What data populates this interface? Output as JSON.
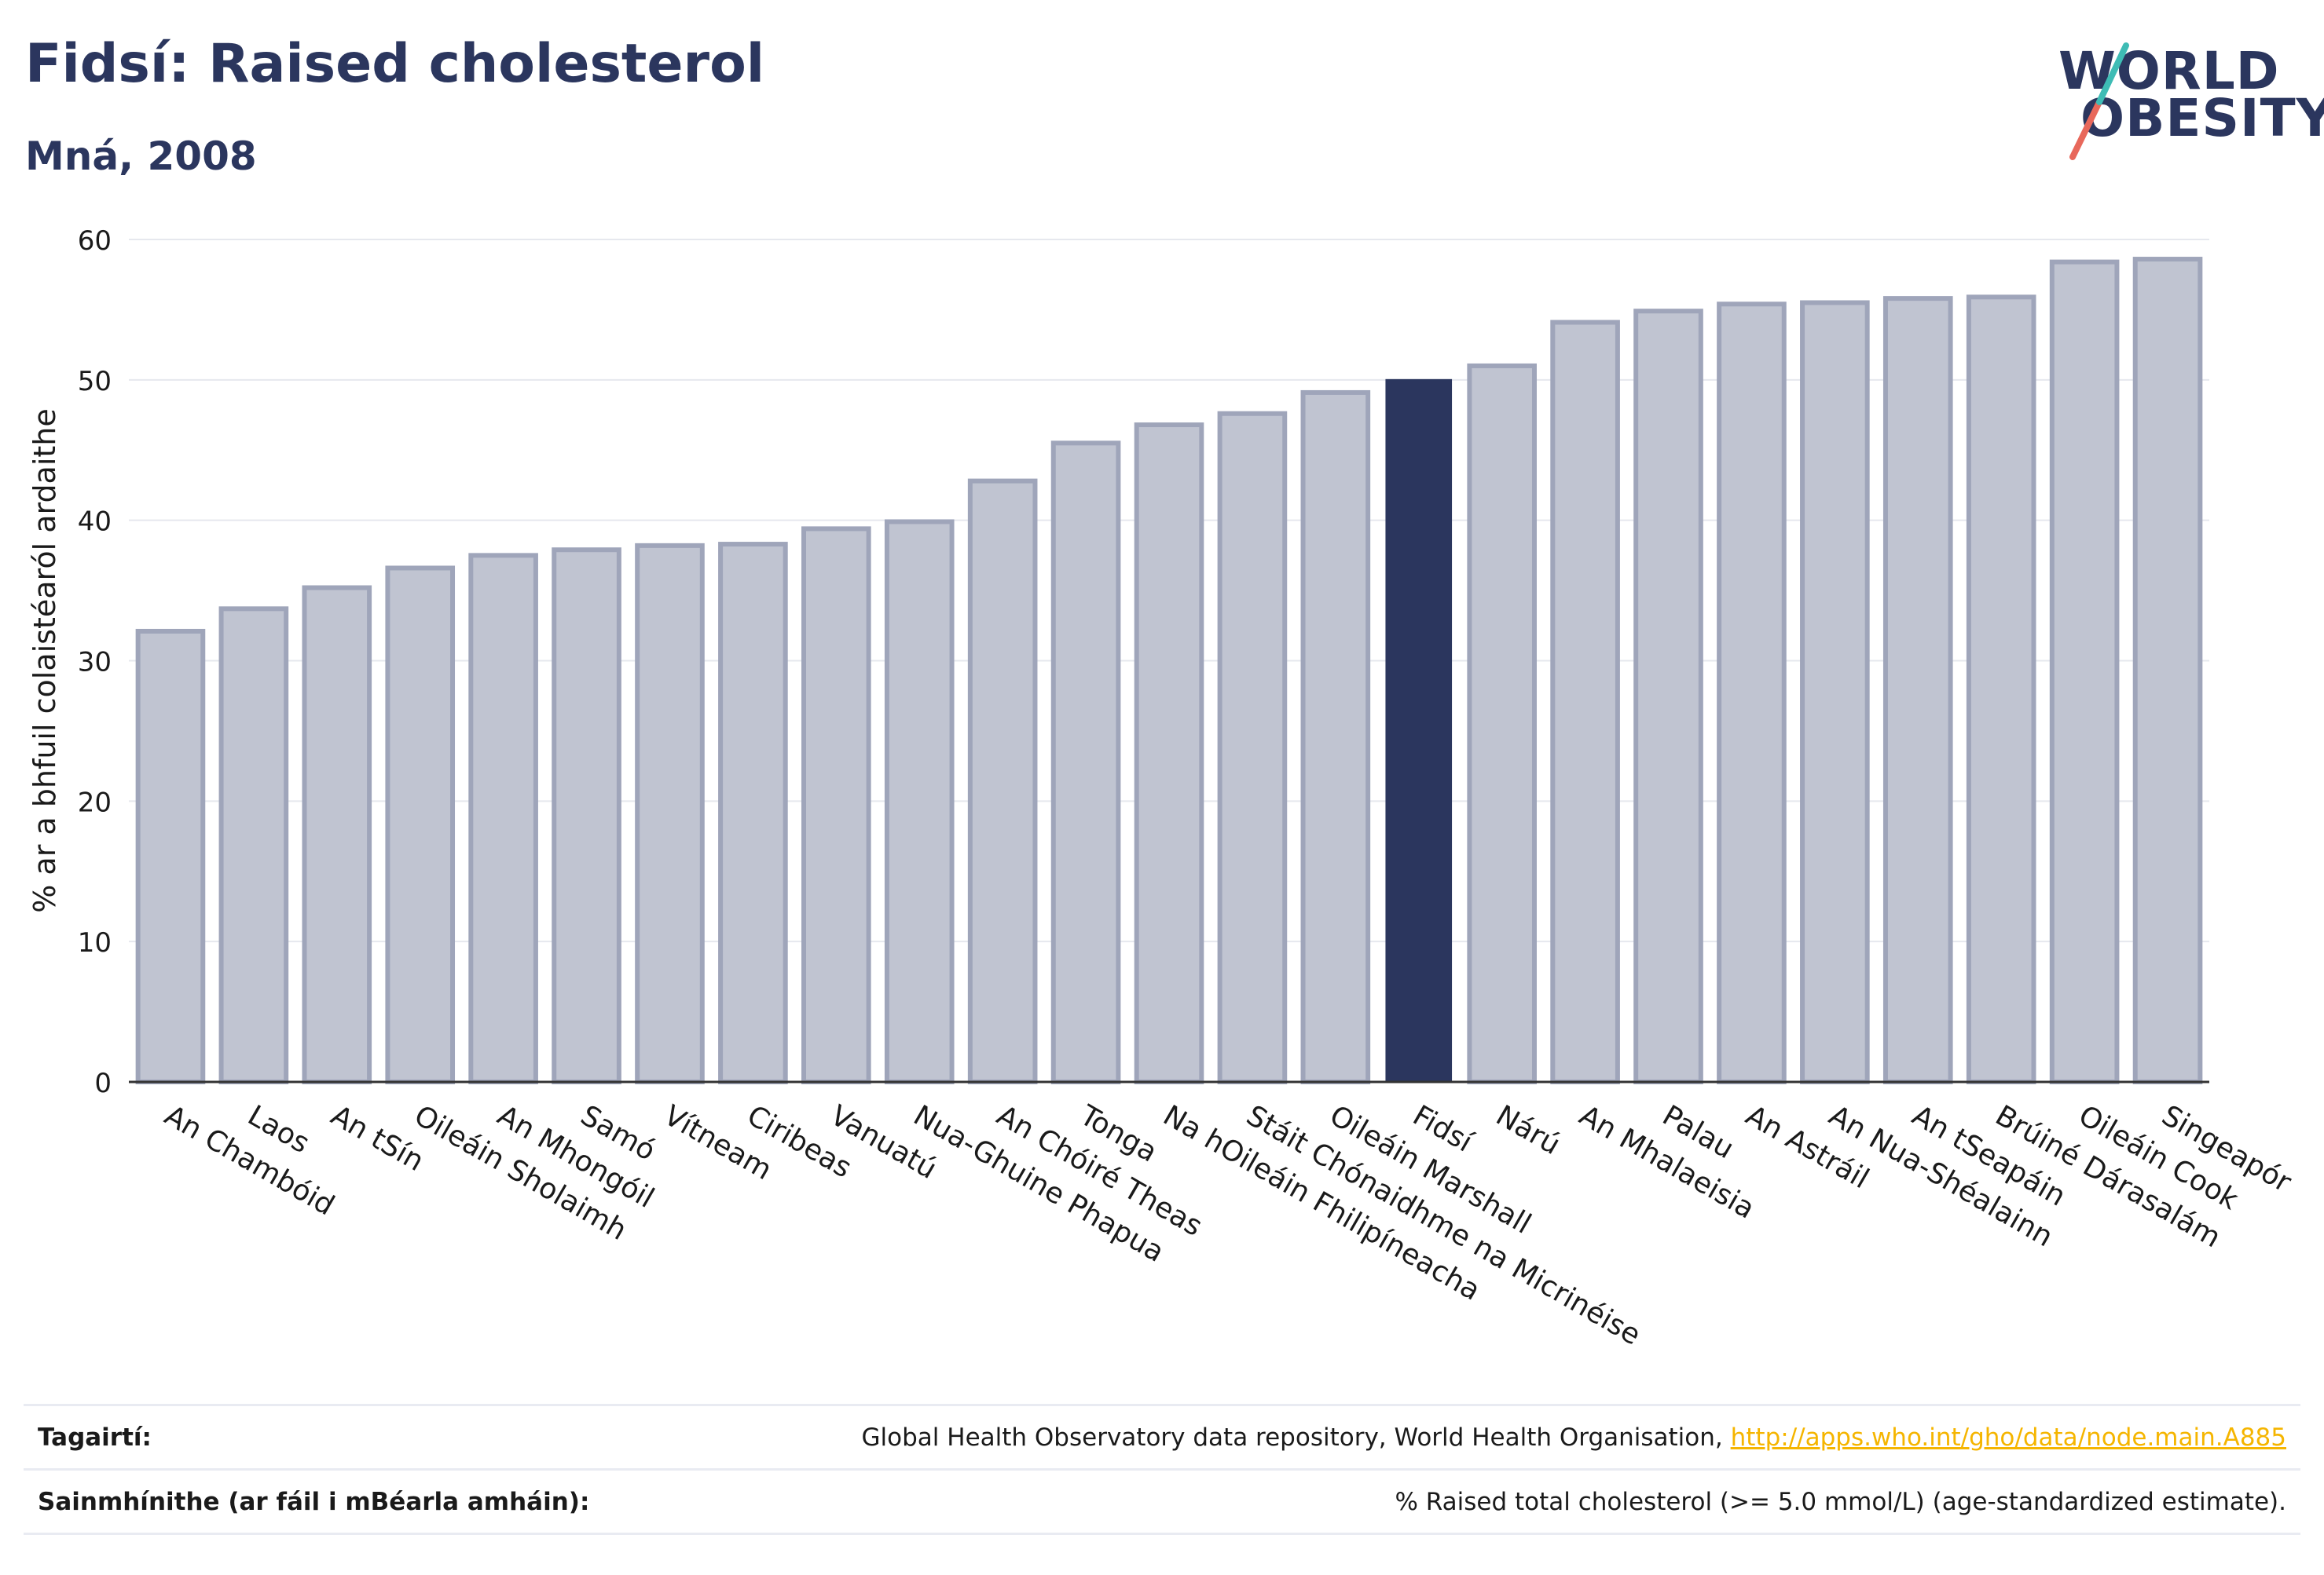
{
  "header": {
    "title": "Fidsí: Raised cholesterol",
    "subtitle": "Mná, 2008"
  },
  "logo": {
    "line1": "WORLD",
    "line2": "OBESITY",
    "slash_colors": [
      "#e8685b",
      "#3ebcb5"
    ]
  },
  "colors": {
    "highlight": "#2b365e",
    "bar_fill": "#c0c4d1",
    "bar_stroke": "#9fa5ba",
    "grid": "#e6e8ee",
    "text": "#1a1a1a",
    "brand": "#2b365e",
    "link": "#f5b500"
  },
  "chart_data": {
    "type": "bar",
    "title": "Fidsí: Raised cholesterol",
    "subtitle": "Mná, 2008",
    "ylabel": "% ar a bhfuil colaistéaról ardaithe",
    "xlabel": "",
    "ylim": [
      0,
      60
    ],
    "yticks": [
      0,
      10,
      20,
      30,
      40,
      50,
      60
    ],
    "grid": true,
    "highlight_category": "Fidsí",
    "categories": [
      "An Chambóid",
      "Laos",
      "An tSín",
      "Oileáin Sholaimh",
      "An Mhongóil",
      "Samó",
      "Vítneam",
      "Ciribeas",
      "Vanuatú",
      "Nua-Ghuine Phapua",
      "An Chóiré Theas",
      "Tonga",
      "Na hOileáin Fhilipíneacha",
      "Stáit Chónaidhme na Micrinéise",
      "Oileáin Marshall",
      "Fidsí",
      "Nárú",
      "An Mhalaeisia",
      "Palau",
      "An Astráil",
      "An Nua-Shéalainn",
      "An tSeapáin",
      "Brúiné Dárasalám",
      "Oileáin Cook",
      "Singeapór"
    ],
    "values": [
      32.1,
      33.7,
      35.2,
      36.6,
      37.5,
      37.9,
      38.2,
      38.3,
      39.4,
      39.9,
      42.8,
      45.5,
      46.8,
      47.6,
      49.1,
      50.0,
      51.0,
      54.1,
      54.9,
      55.4,
      55.5,
      55.8,
      55.9,
      58.4,
      58.6
    ]
  },
  "footer": {
    "references_label": "Tagairtí:",
    "references_text": "Global Health Observatory data repository, World Health Organisation, ",
    "references_link": "http://apps.who.int/gho/data/node.main.A885",
    "definitions_label": "Sainmhínithe (ar fáil i mBéarla amháin):",
    "definitions_text": "% Raised total cholesterol (>= 5.0 mmol/L) (age-standardized estimate)."
  }
}
